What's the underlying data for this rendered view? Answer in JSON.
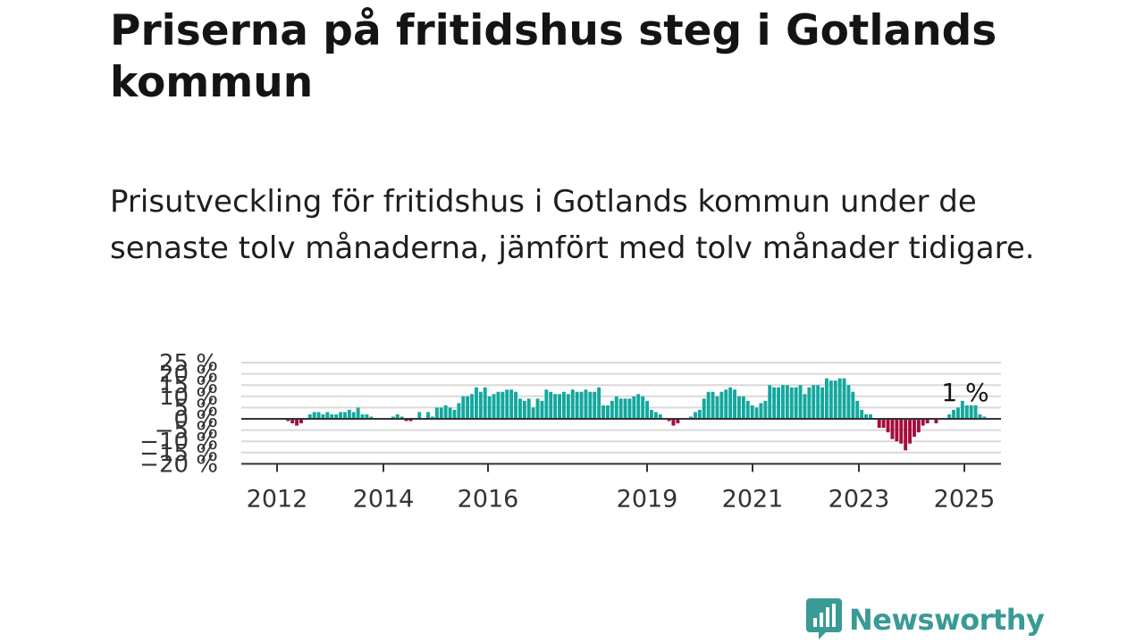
{
  "header": {
    "title": "Priserna på fritidshus steg i Gotlands kommun",
    "subtitle": "Prisutveckling för fritidshus i Gotlands kommun under de senaste tolv månaderna, jämfört med tolv månader tidigare."
  },
  "colors": {
    "positive": "#13a89e",
    "negative": "#a50d3d",
    "grid": "#d9d9d9",
    "axis": "#333333",
    "logo": "#3a9a95"
  },
  "chart_data": {
    "type": "bar",
    "ylim": [
      -20,
      25
    ],
    "y_ticks": [
      {
        "value": 25,
        "label": "25 %"
      },
      {
        "value": 20,
        "label": "20 %"
      },
      {
        "value": 15,
        "label": "15 %"
      },
      {
        "value": 10,
        "label": "10 %"
      },
      {
        "value": 5,
        "label": "5 %"
      },
      {
        "value": 0,
        "label": "0 %"
      },
      {
        "value": -5,
        "label": "−5 %"
      },
      {
        "value": -10,
        "label": "−10 %"
      },
      {
        "value": -15,
        "label": "−15 %"
      },
      {
        "value": -20,
        "label": "−20 %"
      }
    ],
    "x_ticks": [
      "2012",
      "2014",
      "2016",
      "2019",
      "2021",
      "2023",
      "2025"
    ],
    "grid": true,
    "annotation": {
      "label": "1 %"
    },
    "values": [
      0,
      0,
      -1,
      -2,
      -3,
      -2,
      0,
      2,
      3,
      3,
      2,
      3,
      2,
      2,
      3,
      3,
      4,
      3,
      5,
      2,
      2,
      1,
      0,
      0,
      0,
      0,
      1,
      2,
      1,
      -1,
      -1,
      0,
      3,
      0,
      3,
      1,
      5,
      5,
      6,
      5,
      4,
      7,
      10,
      10,
      11,
      14,
      12,
      14,
      10,
      11,
      12,
      12,
      13,
      13,
      12,
      9,
      8,
      9,
      5,
      9,
      8,
      13,
      12,
      11,
      11,
      12,
      11,
      13,
      12,
      12,
      13,
      12,
      12,
      14,
      6,
      6,
      8,
      10,
      9,
      9,
      9,
      10,
      11,
      10,
      8,
      4,
      3,
      2,
      0,
      -1,
      -3,
      -2,
      0,
      0,
      1,
      3,
      4,
      9,
      12,
      12,
      10,
      12,
      13,
      14,
      13,
      10,
      10,
      8,
      6,
      5,
      7,
      8,
      15,
      14,
      14,
      15,
      15,
      14,
      14,
      15,
      11,
      14,
      15,
      15,
      14,
      18,
      17,
      17,
      18,
      18,
      15,
      12,
      8,
      4,
      2,
      2,
      0,
      -4,
      -4,
      -6,
      -9,
      -10,
      -11,
      -14,
      -11,
      -8,
      -6,
      -3,
      -2,
      0,
      -2,
      0,
      0,
      2,
      4,
      5,
      8,
      6,
      6,
      6,
      2,
      1
    ]
  },
  "branding": {
    "name": "Newsworthy"
  }
}
